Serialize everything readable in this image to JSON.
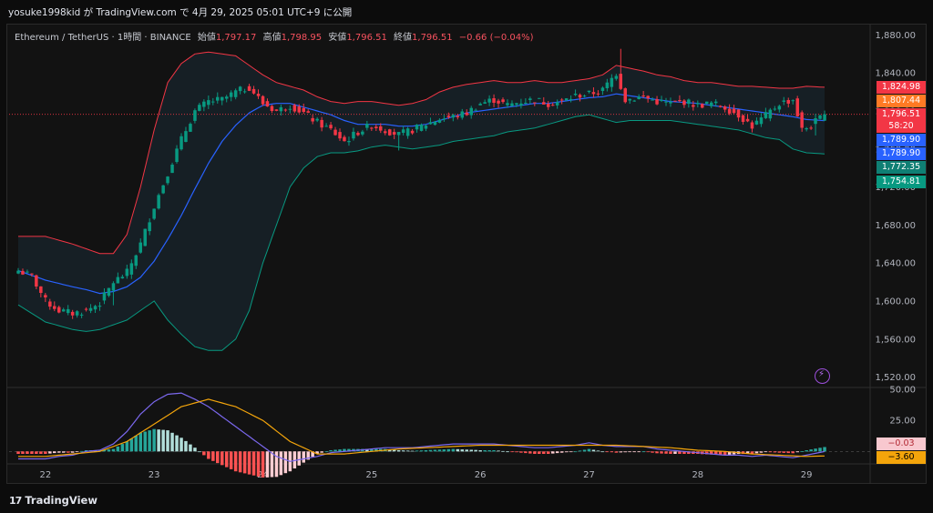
{
  "header": {
    "publish_text": "yosuke1998kid が TradingView.com で 4月 29, 2025 05:01 UTC+9 に公開"
  },
  "legend": {
    "symbol": "Ethereum / TetherUS · 1時間 · BINANCE",
    "open_label": "始値",
    "open": "1,797.17",
    "high_label": "高値",
    "high": "1,798.95",
    "low_label": "安値",
    "low": "1,796.51",
    "close_label": "終値",
    "close": "1,796.51",
    "change": "−0.66 (−0.04%)"
  },
  "price_tags": [
    {
      "id": "bb-upper",
      "text": "1,824.98",
      "color": "#f23645"
    },
    {
      "id": "bb-upper2",
      "text": "1,807.44",
      "color": "#ff7a24"
    },
    {
      "id": "last-price",
      "text": "1,796.51",
      "color": "#f23645"
    },
    {
      "id": "countdown",
      "text": "58:20",
      "color": "#f23645"
    },
    {
      "id": "basis",
      "text": "1,789.90",
      "color": "#2962ff"
    },
    {
      "id": "basis2",
      "text": "1,789.90",
      "color": "#2962ff"
    },
    {
      "id": "bb-lower2",
      "text": "1,772.35",
      "color": "#0f7f74"
    },
    {
      "id": "bb-lower",
      "text": "1,754.81",
      "color": "#089981"
    }
  ],
  "macd_tags": [
    {
      "id": "macd",
      "text": "−0.03",
      "color": "#f8c8cf",
      "fg": "#b22833"
    },
    {
      "id": "signal",
      "text": "−3.60",
      "color": "#f4a50b",
      "fg": "#000"
    }
  ],
  "footer": {
    "brand": "TradingView",
    "brand_mark": "17"
  },
  "colors": {
    "up": "#089981",
    "down": "#f23645",
    "basis": "#2962ff",
    "upper": "#f23645",
    "lower": "#089981",
    "macd": "#7b68ee",
    "signal": "#f4a50b"
  },
  "chart_data": {
    "type": "candlestick",
    "title": "Ethereum / TetherUS · 1時間 · BINANCE",
    "y_ticks": [
      "1,880.00",
      "1,840.00",
      "1,800.00",
      "1,760.00",
      "1,720.00",
      "1,680.00",
      "1,640.00",
      "1,600.00",
      "1,560.00",
      "1,520.00"
    ],
    "y_tick_values": [
      1880,
      1840,
      1800,
      1760,
      1720,
      1680,
      1640,
      1600,
      1560,
      1520
    ],
    "ylim": [
      1510,
      1890
    ],
    "x_ticks": [
      "22",
      "23",
      "24",
      "25",
      "26",
      "27",
      "28",
      "29"
    ],
    "x_tick_index": [
      6,
      30,
      54,
      78,
      102,
      126,
      150,
      174
    ],
    "last_price": 1796.51,
    "anchors": [
      [
        0,
        1632
      ],
      [
        3,
        1626
      ],
      [
        6,
        1600
      ],
      [
        9,
        1590
      ],
      [
        12,
        1587
      ],
      [
        15,
        1590
      ],
      [
        18,
        1598
      ],
      [
        21,
        1620
      ],
      [
        24,
        1630
      ],
      [
        27,
        1660
      ],
      [
        30,
        1700
      ],
      [
        33,
        1735
      ],
      [
        36,
        1770
      ],
      [
        39,
        1800
      ],
      [
        42,
        1810
      ],
      [
        45,
        1812
      ],
      [
        48,
        1820
      ],
      [
        51,
        1825
      ],
      [
        54,
        1808
      ],
      [
        57,
        1800
      ],
      [
        60,
        1806
      ],
      [
        63,
        1798
      ],
      [
        66,
        1788
      ],
      [
        69,
        1780
      ],
      [
        72,
        1768
      ],
      [
        75,
        1778
      ],
      [
        78,
        1785
      ],
      [
        81,
        1780
      ],
      [
        84,
        1775
      ],
      [
        87,
        1780
      ],
      [
        90,
        1786
      ],
      [
        93,
        1792
      ],
      [
        96,
        1794
      ],
      [
        99,
        1798
      ],
      [
        102,
        1808
      ],
      [
        105,
        1812
      ],
      [
        108,
        1806
      ],
      [
        111,
        1810
      ],
      [
        114,
        1812
      ],
      [
        117,
        1808
      ],
      [
        120,
        1810
      ],
      [
        123,
        1816
      ],
      [
        126,
        1818
      ],
      [
        129,
        1822
      ],
      [
        132,
        1840
      ],
      [
        134,
        1812
      ],
      [
        138,
        1815
      ],
      [
        141,
        1810
      ],
      [
        144,
        1808
      ],
      [
        147,
        1810
      ],
      [
        150,
        1806
      ],
      [
        153,
        1808
      ],
      [
        156,
        1804
      ],
      [
        159,
        1796
      ],
      [
        162,
        1784
      ],
      [
        165,
        1795
      ],
      [
        168,
        1808
      ],
      [
        171,
        1812
      ],
      [
        173,
        1780
      ],
      [
        175,
        1785
      ],
      [
        178,
        1796.5
      ]
    ],
    "bb_upper": [
      [
        0,
        1668
      ],
      [
        6,
        1668
      ],
      [
        12,
        1660
      ],
      [
        18,
        1650
      ],
      [
        21,
        1650
      ],
      [
        24,
        1670
      ],
      [
        27,
        1720
      ],
      [
        30,
        1780
      ],
      [
        33,
        1830
      ],
      [
        36,
        1850
      ],
      [
        39,
        1860
      ],
      [
        42,
        1862
      ],
      [
        45,
        1860
      ],
      [
        48,
        1858
      ],
      [
        51,
        1848
      ],
      [
        54,
        1838
      ],
      [
        57,
        1830
      ],
      [
        60,
        1826
      ],
      [
        63,
        1822
      ],
      [
        66,
        1815
      ],
      [
        69,
        1810
      ],
      [
        72,
        1808
      ],
      [
        75,
        1810
      ],
      [
        78,
        1810
      ],
      [
        81,
        1808
      ],
      [
        84,
        1806
      ],
      [
        87,
        1808
      ],
      [
        90,
        1812
      ],
      [
        93,
        1820
      ],
      [
        96,
        1825
      ],
      [
        99,
        1828
      ],
      [
        102,
        1830
      ],
      [
        105,
        1832
      ],
      [
        108,
        1830
      ],
      [
        111,
        1830
      ],
      [
        114,
        1832
      ],
      [
        117,
        1830
      ],
      [
        120,
        1830
      ],
      [
        123,
        1832
      ],
      [
        126,
        1834
      ],
      [
        129,
        1838
      ],
      [
        132,
        1848
      ],
      [
        135,
        1845
      ],
      [
        138,
        1842
      ],
      [
        141,
        1838
      ],
      [
        144,
        1836
      ],
      [
        147,
        1832
      ],
      [
        150,
        1830
      ],
      [
        153,
        1830
      ],
      [
        156,
        1828
      ],
      [
        159,
        1826
      ],
      [
        162,
        1826
      ],
      [
        165,
        1825
      ],
      [
        168,
        1824
      ],
      [
        171,
        1824
      ],
      [
        174,
        1826
      ],
      [
        178,
        1824.98
      ]
    ],
    "bb_lower": [
      [
        0,
        1596
      ],
      [
        6,
        1578
      ],
      [
        12,
        1570
      ],
      [
        15,
        1568
      ],
      [
        18,
        1570
      ],
      [
        21,
        1575
      ],
      [
        24,
        1580
      ],
      [
        27,
        1590
      ],
      [
        30,
        1600
      ],
      [
        33,
        1580
      ],
      [
        36,
        1565
      ],
      [
        39,
        1552
      ],
      [
        42,
        1548
      ],
      [
        45,
        1548
      ],
      [
        48,
        1560
      ],
      [
        51,
        1590
      ],
      [
        54,
        1640
      ],
      [
        57,
        1680
      ],
      [
        60,
        1720
      ],
      [
        63,
        1740
      ],
      [
        66,
        1752
      ],
      [
        69,
        1756
      ],
      [
        72,
        1756
      ],
      [
        75,
        1758
      ],
      [
        78,
        1762
      ],
      [
        81,
        1764
      ],
      [
        84,
        1762
      ],
      [
        87,
        1760
      ],
      [
        90,
        1762
      ],
      [
        93,
        1764
      ],
      [
        96,
        1768
      ],
      [
        99,
        1770
      ],
      [
        102,
        1772
      ],
      [
        105,
        1774
      ],
      [
        108,
        1778
      ],
      [
        111,
        1780
      ],
      [
        114,
        1782
      ],
      [
        117,
        1786
      ],
      [
        120,
        1790
      ],
      [
        123,
        1794
      ],
      [
        126,
        1796
      ],
      [
        129,
        1792
      ],
      [
        132,
        1788
      ],
      [
        135,
        1790
      ],
      [
        138,
        1790
      ],
      [
        141,
        1790
      ],
      [
        144,
        1790
      ],
      [
        147,
        1788
      ],
      [
        150,
        1786
      ],
      [
        153,
        1784
      ],
      [
        156,
        1782
      ],
      [
        159,
        1780
      ],
      [
        162,
        1776
      ],
      [
        165,
        1772
      ],
      [
        168,
        1770
      ],
      [
        171,
        1760
      ],
      [
        174,
        1756
      ],
      [
        178,
        1754.81
      ]
    ],
    "bb_basis": [
      [
        0,
        1632
      ],
      [
        6,
        1622
      ],
      [
        12,
        1615
      ],
      [
        15,
        1612
      ],
      [
        18,
        1608
      ],
      [
        21,
        1610
      ],
      [
        24,
        1615
      ],
      [
        27,
        1625
      ],
      [
        30,
        1642
      ],
      [
        33,
        1665
      ],
      [
        36,
        1690
      ],
      [
        39,
        1718
      ],
      [
        42,
        1745
      ],
      [
        45,
        1768
      ],
      [
        48,
        1785
      ],
      [
        51,
        1798
      ],
      [
        54,
        1806
      ],
      [
        57,
        1808
      ],
      [
        60,
        1808
      ],
      [
        63,
        1804
      ],
      [
        66,
        1800
      ],
      [
        69,
        1796
      ],
      [
        72,
        1790
      ],
      [
        75,
        1786
      ],
      [
        78,
        1786
      ],
      [
        81,
        1786
      ],
      [
        84,
        1784
      ],
      [
        87,
        1784
      ],
      [
        90,
        1786
      ],
      [
        93,
        1790
      ],
      [
        96,
        1794
      ],
      [
        99,
        1798
      ],
      [
        102,
        1800
      ],
      [
        105,
        1802
      ],
      [
        108,
        1804
      ],
      [
        111,
        1806
      ],
      [
        114,
        1808
      ],
      [
        117,
        1808
      ],
      [
        120,
        1810
      ],
      [
        123,
        1812
      ],
      [
        126,
        1814
      ],
      [
        129,
        1815
      ],
      [
        132,
        1818
      ],
      [
        135,
        1816
      ],
      [
        138,
        1814
      ],
      [
        141,
        1812
      ],
      [
        144,
        1810
      ],
      [
        147,
        1809
      ],
      [
        150,
        1808
      ],
      [
        153,
        1806
      ],
      [
        156,
        1804
      ],
      [
        159,
        1802
      ],
      [
        162,
        1800
      ],
      [
        165,
        1798
      ],
      [
        168,
        1796
      ],
      [
        171,
        1794
      ],
      [
        174,
        1791
      ],
      [
        178,
        1789.9
      ]
    ],
    "macd": {
      "ylim": [
        -10,
        50
      ],
      "y_ticks": [
        "50.00",
        "25.00"
      ],
      "y_tick_values": [
        50,
        25
      ],
      "macd_line": [
        [
          0,
          -6
        ],
        [
          6,
          -6
        ],
        [
          9,
          -4
        ],
        [
          12,
          -3
        ],
        [
          15,
          0
        ],
        [
          18,
          1
        ],
        [
          21,
          6
        ],
        [
          24,
          16
        ],
        [
          27,
          30
        ],
        [
          30,
          40
        ],
        [
          33,
          46
        ],
        [
          36,
          47
        ],
        [
          39,
          42
        ],
        [
          42,
          36
        ],
        [
          45,
          28
        ],
        [
          48,
          20
        ],
        [
          51,
          12
        ],
        [
          54,
          4
        ],
        [
          57,
          -4
        ],
        [
          60,
          -8
        ],
        [
          63,
          -6
        ],
        [
          66,
          -4
        ],
        [
          69,
          -1
        ],
        [
          72,
          0
        ],
        [
          75,
          1
        ],
        [
          78,
          2
        ],
        [
          81,
          3
        ],
        [
          84,
          3
        ],
        [
          87,
          3
        ],
        [
          90,
          4
        ],
        [
          93,
          5
        ],
        [
          96,
          6
        ],
        [
          99,
          6
        ],
        [
          102,
          6
        ],
        [
          105,
          6
        ],
        [
          108,
          5
        ],
        [
          111,
          4
        ],
        [
          114,
          3
        ],
        [
          117,
          3
        ],
        [
          120,
          4
        ],
        [
          123,
          5
        ],
        [
          126,
          7
        ],
        [
          129,
          5
        ],
        [
          132,
          4
        ],
        [
          135,
          4
        ],
        [
          138,
          4
        ],
        [
          141,
          2
        ],
        [
          144,
          1
        ],
        [
          147,
          0
        ],
        [
          150,
          -1
        ],
        [
          153,
          -2
        ],
        [
          156,
          -3
        ],
        [
          159,
          -3
        ],
        [
          162,
          -4
        ],
        [
          165,
          -3
        ],
        [
          168,
          -4
        ],
        [
          171,
          -5
        ],
        [
          174,
          -3
        ],
        [
          178,
          -0.03
        ]
      ],
      "signal_line": [
        [
          0,
          -4
        ],
        [
          6,
          -4
        ],
        [
          12,
          -2
        ],
        [
          18,
          0
        ],
        [
          24,
          8
        ],
        [
          30,
          22
        ],
        [
          36,
          36
        ],
        [
          42,
          42
        ],
        [
          48,
          36
        ],
        [
          54,
          25
        ],
        [
          60,
          8
        ],
        [
          66,
          -2
        ],
        [
          72,
          -2
        ],
        [
          78,
          0
        ],
        [
          84,
          2
        ],
        [
          90,
          3
        ],
        [
          96,
          4
        ],
        [
          102,
          5
        ],
        [
          108,
          5
        ],
        [
          114,
          5
        ],
        [
          120,
          5
        ],
        [
          126,
          5
        ],
        [
          132,
          5
        ],
        [
          138,
          4
        ],
        [
          144,
          3
        ],
        [
          150,
          1
        ],
        [
          156,
          0
        ],
        [
          162,
          -2
        ],
        [
          168,
          -3
        ],
        [
          174,
          -4
        ],
        [
          178,
          -3.6
        ]
      ]
    }
  }
}
